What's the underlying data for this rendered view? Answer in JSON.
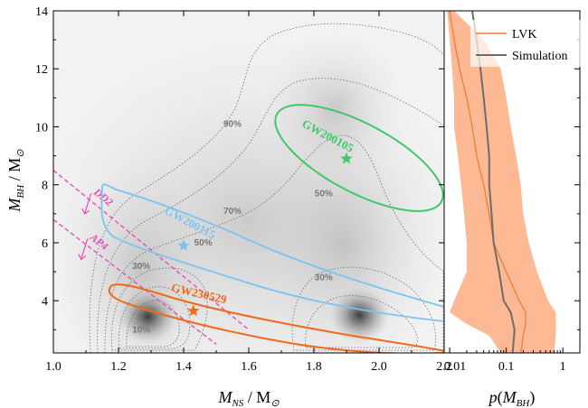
{
  "chart_data": [
    {
      "type": "heatmap",
      "x_axis": {
        "label": "M",
        "label_sub": "NS",
        "label_unit": " / M",
        "label_unit_sub": "⊙",
        "range": [
          1.0,
          2.2
        ],
        "ticks": [
          1.0,
          1.2,
          1.4,
          1.6,
          1.8,
          2.0,
          2.2
        ],
        "tick_labels": [
          "1.0",
          "1.2",
          "1.4",
          "1.6",
          "1.8",
          "2.0",
          "2.2"
        ]
      },
      "y_axis": {
        "label": "M",
        "label_sub": "BH",
        "label_unit": " / M",
        "label_unit_sub": "⊙",
        "range": [
          2.2,
          14
        ],
        "ticks": [
          4,
          6,
          8,
          10,
          12,
          14
        ],
        "tick_labels": [
          "4",
          "6",
          "8",
          "10",
          "12",
          "14"
        ]
      },
      "density_peaks": [
        {
          "x": 1.29,
          "y": 3.45,
          "level": "high"
        },
        {
          "x": 1.94,
          "y": 3.5,
          "level": "high"
        }
      ],
      "contour_labels": [
        {
          "text": "90%",
          "x": 1.55,
          "y": 10.0
        },
        {
          "text": "70%",
          "x": 1.55,
          "y": 7.0
        },
        {
          "text": "50%",
          "x": 1.46,
          "y": 5.9
        },
        {
          "text": "50%",
          "x": 1.83,
          "y": 7.6
        },
        {
          "text": "30%",
          "x": 1.27,
          "y": 5.1
        },
        {
          "text": "30%",
          "x": 1.83,
          "y": 4.7
        },
        {
          "text": "10%",
          "x": 1.27,
          "y": 2.9
        }
      ],
      "events": [
        {
          "name": "GW200105",
          "color": "#3fc86a",
          "star": {
            "x": 1.9,
            "y": 8.9
          }
        },
        {
          "name": "GW200115",
          "color": "#7cc4f0",
          "star": {
            "x": 1.4,
            "y": 5.9
          }
        },
        {
          "name": "GW230529",
          "color": "#f06a18",
          "star": {
            "x": 1.43,
            "y": 3.65
          }
        }
      ],
      "eos_limits": [
        {
          "name": "DD2",
          "color": "#e64fb3",
          "points": [
            [
              1.0,
              8.5
            ],
            [
              1.6,
              3.0
            ]
          ]
        },
        {
          "name": "AP4",
          "color": "#e64fb3",
          "points": [
            [
              1.0,
              6.8
            ],
            [
              1.5,
              2.5
            ]
          ]
        }
      ]
    },
    {
      "type": "area",
      "x_axis": {
        "label": "p",
        "label_arg": "M",
        "label_arg_sub": "BH",
        "scale": "log",
        "range": [
          0.008,
          2.0
        ],
        "ticks": [
          0.01,
          0.1,
          1
        ],
        "tick_labels": [
          "0.01",
          "0.1",
          "1"
        ]
      },
      "y_axis": {
        "range": [
          2.2,
          14
        ],
        "shared_with_main": true
      },
      "legend": {
        "position": "top-right",
        "entries": [
          "LVK",
          "Simulation"
        ]
      },
      "series": [
        {
          "name": "LVK",
          "color": "#f07a2a",
          "band_color": "#fdb894",
          "y": [
            2.2,
            2.8,
            3.2,
            3.6,
            4.0,
            5.0,
            6.0,
            7.0,
            8.0,
            9.0,
            10.0,
            11.0,
            12.0,
            13.0,
            14.0
          ],
          "median": [
            0.18,
            0.2,
            0.22,
            0.22,
            0.17,
            0.1,
            0.06,
            0.05,
            0.04,
            0.03,
            0.025,
            0.02,
            0.015,
            0.012,
            0.01
          ],
          "lower": [
            0.08,
            0.05,
            0.02,
            0.01,
            0.012,
            0.02,
            0.02,
            0.018,
            0.016,
            0.014,
            0.012,
            0.012,
            0.011,
            0.01,
            0.009
          ],
          "upper": [
            0.7,
            0.75,
            0.75,
            0.75,
            0.55,
            0.35,
            0.25,
            0.2,
            0.18,
            0.15,
            0.12,
            0.1,
            0.08,
            0.04,
            0.012
          ]
        },
        {
          "name": "Simulation",
          "color": "#6d6d6d",
          "y": [
            2.2,
            3.0,
            3.6,
            4.0,
            5.0,
            6.0,
            7.0,
            8.0,
            9.0,
            10.0,
            11.0,
            12.0,
            13.0,
            14.0
          ],
          "values": [
            0.13,
            0.14,
            0.12,
            0.09,
            0.075,
            0.06,
            0.055,
            0.05,
            0.05,
            0.045,
            0.04,
            0.035,
            0.03,
            0.025
          ]
        }
      ]
    }
  ]
}
